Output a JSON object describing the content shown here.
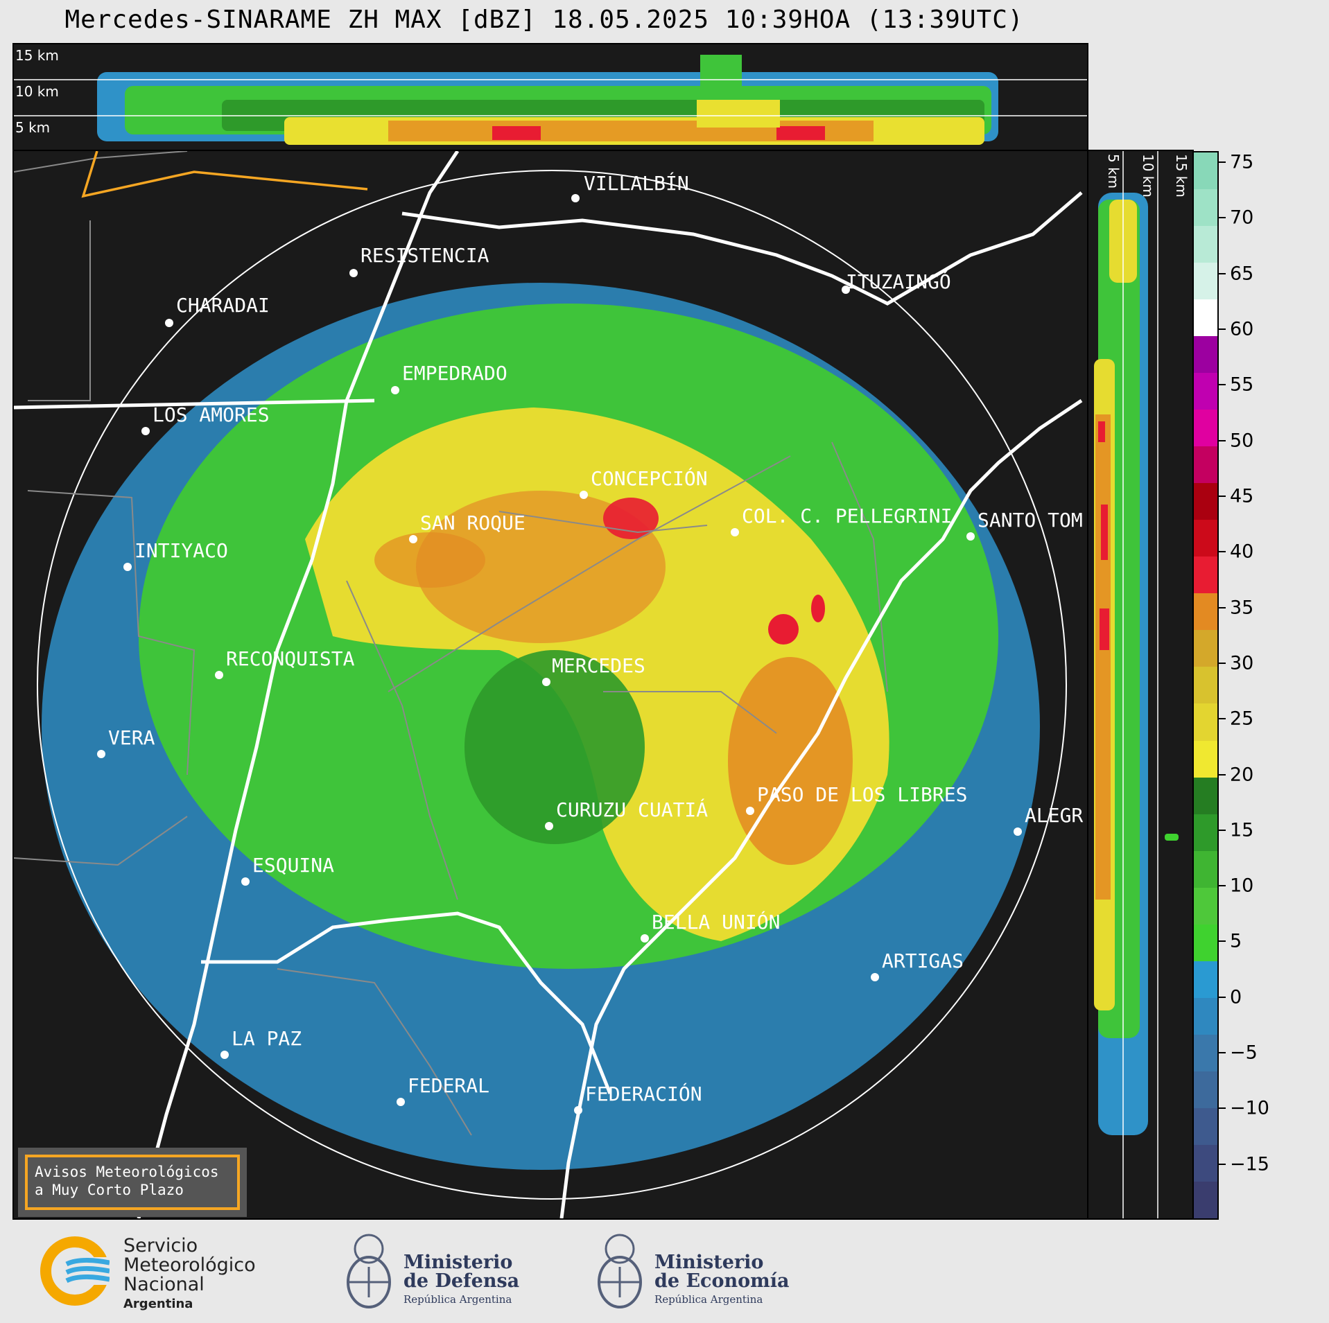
{
  "title": "Mercedes-SINARAME ZH MAX [dBZ] 18.05.2025 10:39HOA (13:39UTC)",
  "top_panel": {
    "height_labels": [
      "15 km",
      "10 km",
      "5 km"
    ]
  },
  "side_panel": {
    "height_labels": [
      "5 km",
      "10 km",
      "15 km"
    ]
  },
  "colorbar": {
    "ticks": [
      "75",
      "70",
      "65",
      "60",
      "55",
      "50",
      "45",
      "40",
      "35",
      "30",
      "25",
      "20",
      "15",
      "10",
      "5",
      "0",
      "−5",
      "−10",
      "−15"
    ],
    "range": [
      -20,
      76
    ],
    "colors": [
      "#3a3d6e",
      "#3d4a7e",
      "#3e5a8e",
      "#3d6a9c",
      "#3a78ab",
      "#2f88bf",
      "#2a9ad2",
      "#3fd22f",
      "#4ec83a",
      "#3fb532",
      "#2e9a2a",
      "#257d22",
      "#f0e830",
      "#e3d530",
      "#d8c22e",
      "#d4a82a",
      "#e38a22",
      "#e81c32",
      "#cc0a1a",
      "#aa0010",
      "#c40060",
      "#e000a0",
      "#c000b0",
      "#9c00a0",
      "#ffffff",
      "#d6f2e8",
      "#b8ead6",
      "#9ee2c6",
      "#88d8b8"
    ]
  },
  "cities": [
    {
      "name": "VILLALBÍN"
    },
    {
      "name": "RESISTENCIA"
    },
    {
      "name": "CHARADAI"
    },
    {
      "name": "ITUZAINGÓ"
    },
    {
      "name": "EMPEDRADO"
    },
    {
      "name": "LOS AMORES"
    },
    {
      "name": "CONCEPCIÓN"
    },
    {
      "name": "SAN ROQUE"
    },
    {
      "name": "COL. C. PELLEGRINI"
    },
    {
      "name": "SANTO TOM"
    },
    {
      "name": "INTIYACO"
    },
    {
      "name": "MERCEDES"
    },
    {
      "name": "RECONQUISTA"
    },
    {
      "name": "VERA"
    },
    {
      "name": "CURUZU CUATIÁ"
    },
    {
      "name": "PASO DE LOS LIBRES"
    },
    {
      "name": "ALEGR"
    },
    {
      "name": "ESQUINA"
    },
    {
      "name": "BELLA UNIÓN"
    },
    {
      "name": "ARTIGAS"
    },
    {
      "name": "LA PAZ"
    },
    {
      "name": "FEDERAL"
    },
    {
      "name": "FEDERACIÓN"
    }
  ],
  "avisos": {
    "line1": "Avisos Meteorológicos",
    "line2": "a Muy Corto Plazo"
  },
  "logos": {
    "smn": {
      "line1": "Servicio",
      "line2": "Meteorológico",
      "line3": "Nacional",
      "line4": "Argentina"
    },
    "defensa": {
      "line1": "Ministerio",
      "line2": "de Defensa",
      "line3": "República Argentina"
    },
    "economia": {
      "line1": "Ministerio",
      "line2": "de Economía",
      "line3": "República Argentina"
    }
  }
}
